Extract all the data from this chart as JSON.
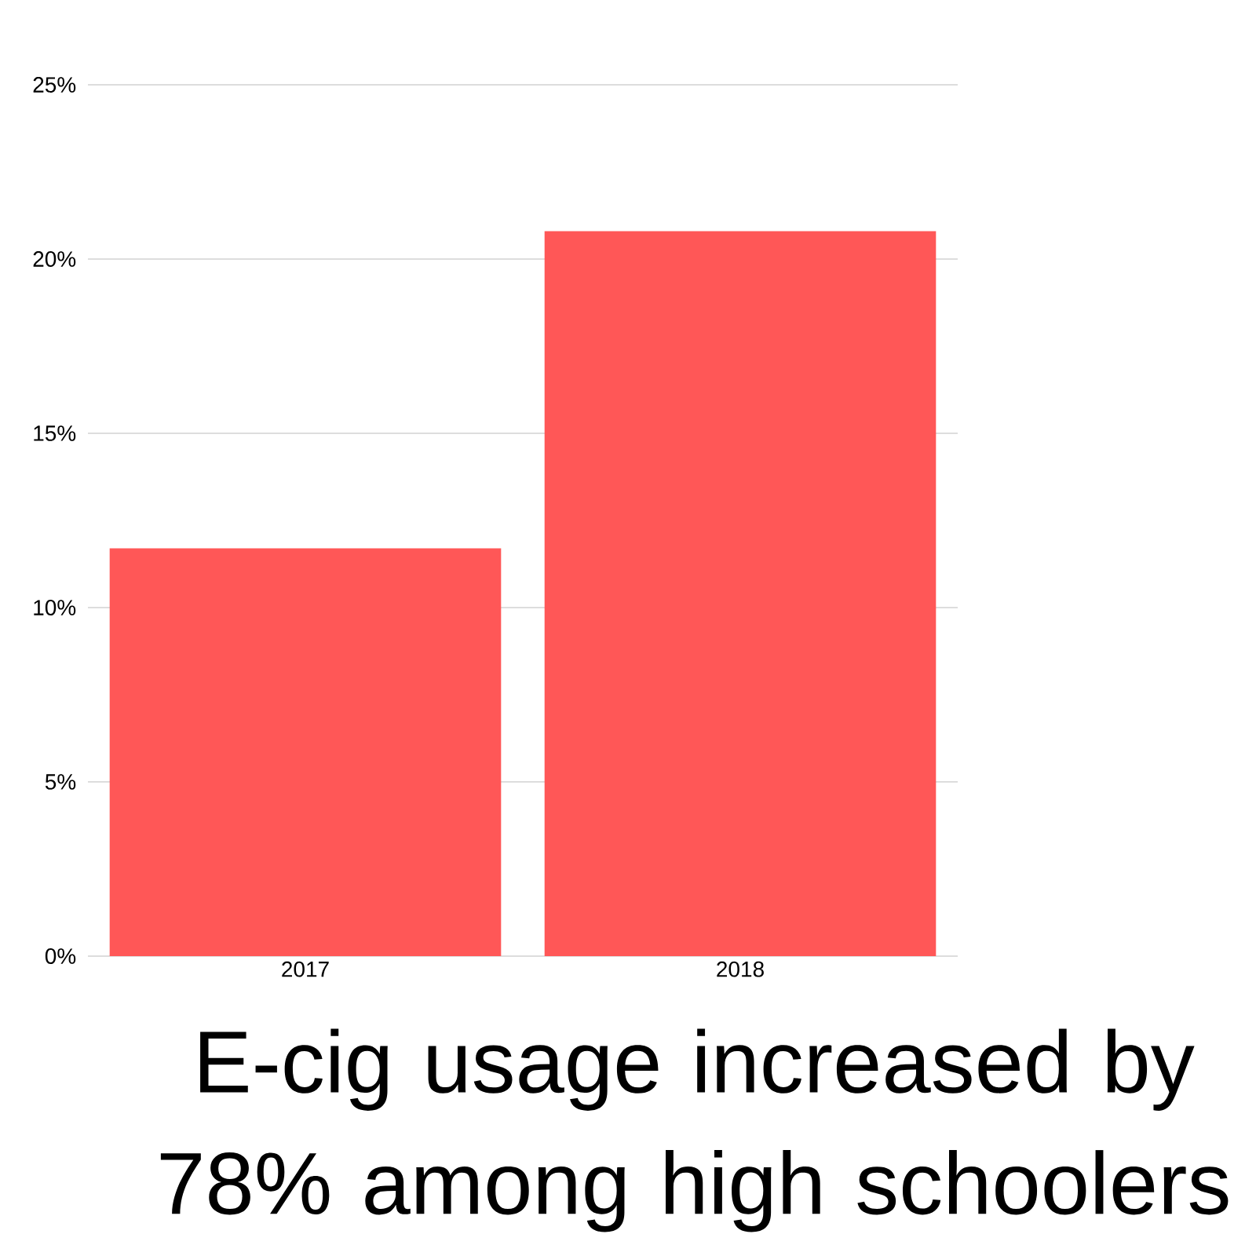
{
  "chart_data": {
    "type": "bar",
    "title": "E-cig usage increased by 78% among high schoolers",
    "categories": [
      "2017",
      "2018"
    ],
    "values": [
      11.7,
      20.8
    ],
    "color": "#ff5757",
    "ylim": [
      0,
      25
    ],
    "yticks": [
      {
        "value": 0,
        "label": "0%"
      },
      {
        "value": 5,
        "label": "5%"
      },
      {
        "value": 10,
        "label": "10%"
      },
      {
        "value": 15,
        "label": "15%"
      },
      {
        "value": 20,
        "label": "20%"
      },
      {
        "value": 25,
        "label": "25%"
      }
    ],
    "grid": "y"
  }
}
